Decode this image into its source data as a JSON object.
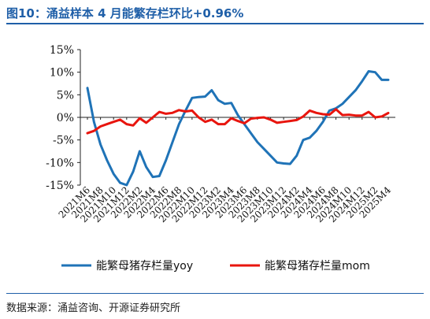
{
  "header": {
    "title": "图10：涌益样本 4 月能繁存栏环比+0.96%"
  },
  "footer": {
    "source": "数据来源：涌益咨询、开源证券研究所"
  },
  "chart_data": {
    "type": "line",
    "title": "",
    "xlabel": "",
    "ylabel": "",
    "ylim": [
      -15,
      15
    ],
    "yticks": [
      "15%",
      "10%",
      "5%",
      "0%",
      "-5%",
      "-10%",
      "-15%"
    ],
    "ytick_values": [
      15,
      10,
      5,
      0,
      -5,
      -10,
      -15
    ],
    "xticks": [
      "2021M6",
      "2021M8",
      "2021M10",
      "2021M12",
      "2022M2",
      "2022M4",
      "2022M6",
      "2022M8",
      "2022M10",
      "2022M12",
      "2023M2",
      "2023M4",
      "2023M6",
      "2023M8",
      "2023M10",
      "2023M12",
      "2024M2",
      "2024M4",
      "2024M6",
      "2024M8",
      "2024M10",
      "2024M12",
      "2025M2",
      "2025M4"
    ],
    "legend_position": "bottom",
    "x": [
      "2021M6",
      "2021M7",
      "2021M8",
      "2021M9",
      "2021M10",
      "2021M11",
      "2021M12",
      "2022M1",
      "2022M2",
      "2022M3",
      "2022M4",
      "2022M5",
      "2022M6",
      "2022M7",
      "2022M8",
      "2022M9",
      "2022M10",
      "2022M11",
      "2022M12",
      "2023M1",
      "2023M2",
      "2023M3",
      "2023M4",
      "2023M5",
      "2023M6",
      "2023M7",
      "2023M8",
      "2023M9",
      "2023M10",
      "2023M11",
      "2023M12",
      "2024M1",
      "2024M2",
      "2024M3",
      "2024M4",
      "2024M5",
      "2024M6",
      "2024M7",
      "2024M8",
      "2024M9",
      "2024M10",
      "2024M11",
      "2024M12",
      "2025M1",
      "2025M2",
      "2025M3",
      "2025M4"
    ],
    "series": [
      {
        "name": "能繁母猪存栏量yoy",
        "color": "#1f73b7",
        "values": [
          6.5,
          -1.0,
          -6.0,
          -9.5,
          -12.5,
          -14.5,
          -15.0,
          -12.0,
          -7.5,
          -11.0,
          -13.2,
          -13.0,
          -9.5,
          -5.5,
          -1.5,
          1.5,
          4.3,
          4.5,
          4.6,
          6.0,
          3.8,
          3.0,
          3.2,
          0.5,
          -1.5,
          -3.5,
          -5.5,
          -7.0,
          -8.5,
          -10.0,
          -10.2,
          -10.3,
          -8.5,
          -5.0,
          -4.5,
          -3.0,
          -1.0,
          1.5,
          2.0,
          3.0,
          4.5,
          6.0,
          8.0,
          10.2,
          10.0,
          8.3,
          8.3
        ]
      },
      {
        "name": "能繁母猪存栏量mom",
        "color": "#e8150e",
        "values": [
          -3.5,
          -3.0,
          -2.0,
          -1.5,
          -1.0,
          -0.5,
          -1.5,
          -1.8,
          -0.2,
          -1.2,
          0.0,
          1.2,
          0.8,
          1.0,
          1.6,
          1.3,
          1.5,
          0.0,
          -1.0,
          -0.5,
          -1.5,
          -1.5,
          -0.2,
          -0.8,
          -1.3,
          -0.3,
          -0.1,
          0.0,
          -0.5,
          -1.2,
          -1.0,
          -0.8,
          -0.6,
          0.2,
          1.5,
          1.0,
          0.7,
          0.6,
          1.8,
          0.5,
          0.6,
          0.4,
          0.4,
          1.2,
          0.0,
          0.2,
          0.96
        ]
      }
    ]
  }
}
